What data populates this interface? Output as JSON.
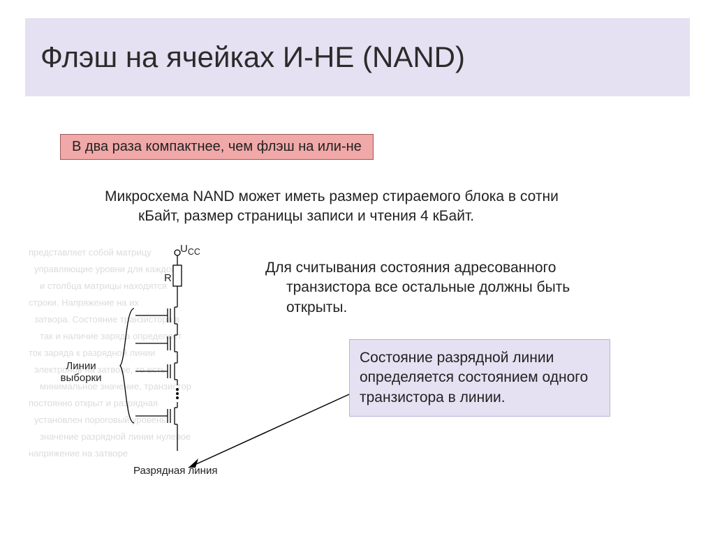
{
  "colors": {
    "title_band_bg": "#e5e1f2",
    "callout_red_bg": "#f1a8a8",
    "callout_red_border": "#9a5a5a",
    "callout_purple_bg": "#e5e1f2",
    "callout_purple_border": "#b9b3d8",
    "text": "#222222",
    "faint_bg_text": "#dcdcdc",
    "stroke": "#000000"
  },
  "title": "Флэш на ячейках И-НЕ (NAND)",
  "callout_red": "В два раза компактнее, чем флэш на или-не",
  "body_para_line1": "Микросхема NAND может иметь размер стираемого блока в сотни",
  "body_para_line2": "кБайт, размер страницы записи и чтения 4 кБайт.",
  "side_para_line1": "Для считывания состояния адресованного",
  "side_para_line2": "транзистора все остальные должны быть",
  "side_para_line3": "открыты.",
  "callout_purple": "Состояние разрядной линии определяется состоянием одного транзистора в линии.",
  "circuit": {
    "ucc_label": "U",
    "ucc_sub": "CC",
    "r_label": "R",
    "selrow_label": "Линии выборки",
    "bitline_label": "Разрядная линия",
    "background_faint_lines": [
      "представляет собой матрицу",
      "управляющие уровни для каждой",
      "и столбца матрицы находятся",
      "строки. Напряжение на их",
      "затвора. Состояние транзистора в",
      "так и наличие заряда определяет",
      "ток заряда к разрядной линии",
      "электронов на затворе, то есть",
      "минимальное значение, транзистор",
      "постоянно открыт и разрядная",
      "установлен пороговый уровень",
      "значение разрядной линии нулевое",
      "напряжение на затворе"
    ],
    "transistor_count": 4,
    "line_width": 1.3
  }
}
